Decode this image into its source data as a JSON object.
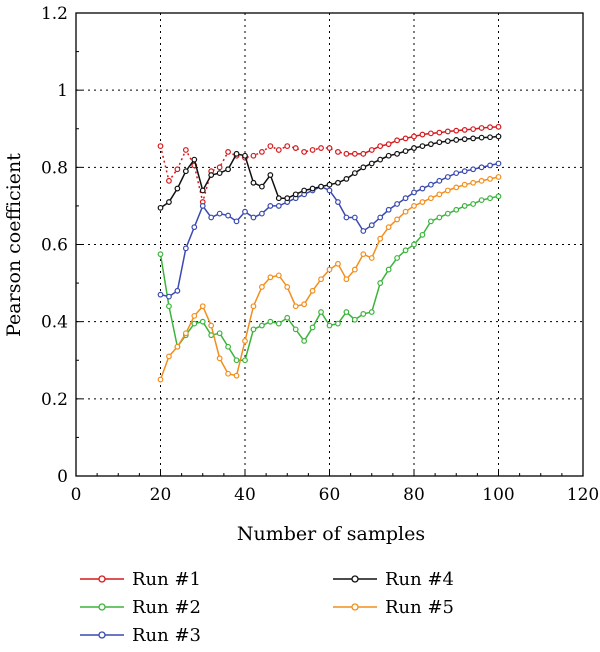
{
  "chart_data": {
    "type": "line",
    "xlabel": "Number of samples",
    "ylabel": "Pearson coefficient",
    "xlim": [
      0,
      120
    ],
    "ylim": [
      0,
      1.2
    ],
    "xticks": [
      0,
      20,
      40,
      60,
      80,
      100,
      120
    ],
    "yticks": [
      0,
      0.2,
      0.4,
      0.6,
      0.8,
      1,
      1.2
    ],
    "ytick_labels": [
      "0",
      "0.2",
      "0.4",
      "0.6",
      "0.8",
      "1",
      "1.2"
    ],
    "grid": "dotted",
    "legend_placement": "below",
    "x": [
      20,
      22,
      24,
      26,
      28,
      30,
      32,
      34,
      36,
      38,
      40,
      42,
      44,
      46,
      48,
      50,
      52,
      54,
      56,
      58,
      60,
      62,
      64,
      66,
      68,
      70,
      72,
      74,
      76,
      78,
      80,
      82,
      84,
      86,
      88,
      90,
      92,
      94,
      96,
      98,
      100
    ],
    "series": [
      {
        "name": "Run #1",
        "color": "#d7191c",
        "style": "dotted-to-solid",
        "values": [
          0.855,
          0.765,
          0.795,
          0.845,
          0.805,
          0.71,
          0.79,
          0.8,
          0.84,
          0.83,
          0.825,
          0.83,
          0.84,
          0.855,
          0.845,
          0.855,
          0.85,
          0.84,
          0.845,
          0.85,
          0.85,
          0.84,
          0.835,
          0.835,
          0.835,
          0.845,
          0.855,
          0.86,
          0.87,
          0.875,
          0.88,
          0.885,
          0.888,
          0.89,
          0.893,
          0.895,
          0.897,
          0.899,
          0.902,
          0.904,
          0.905
        ]
      },
      {
        "name": "Run #2",
        "color": "#3cb43c",
        "style": "solid",
        "values": [
          0.575,
          0.44,
          0.335,
          0.365,
          0.395,
          0.4,
          0.365,
          0.37,
          0.335,
          0.3,
          0.3,
          0.38,
          0.39,
          0.4,
          0.395,
          0.41,
          0.38,
          0.35,
          0.385,
          0.425,
          0.39,
          0.395,
          0.425,
          0.405,
          0.42,
          0.425,
          0.5,
          0.535,
          0.565,
          0.585,
          0.6,
          0.625,
          0.66,
          0.67,
          0.68,
          0.69,
          0.7,
          0.705,
          0.715,
          0.72,
          0.725
        ]
      },
      {
        "name": "Run #3",
        "color": "#3a4ab0",
        "style": "solid",
        "values": [
          0.47,
          0.465,
          0.48,
          0.59,
          0.645,
          0.7,
          0.67,
          0.68,
          0.675,
          0.66,
          0.685,
          0.67,
          0.68,
          0.7,
          0.7,
          0.71,
          0.72,
          0.73,
          0.74,
          0.75,
          0.74,
          0.71,
          0.67,
          0.67,
          0.635,
          0.65,
          0.67,
          0.69,
          0.705,
          0.72,
          0.735,
          0.745,
          0.755,
          0.765,
          0.775,
          0.785,
          0.79,
          0.795,
          0.8,
          0.805,
          0.81
        ]
      },
      {
        "name": "Run #4",
        "color": "#111111",
        "style": "solid",
        "values": [
          0.695,
          0.71,
          0.745,
          0.79,
          0.82,
          0.74,
          0.78,
          0.785,
          0.795,
          0.835,
          0.83,
          0.76,
          0.75,
          0.78,
          0.72,
          0.72,
          0.73,
          0.74,
          0.745,
          0.75,
          0.755,
          0.76,
          0.77,
          0.785,
          0.8,
          0.81,
          0.82,
          0.83,
          0.835,
          0.842,
          0.85,
          0.855,
          0.86,
          0.865,
          0.868,
          0.871,
          0.873,
          0.875,
          0.877,
          0.878,
          0.88
        ]
      },
      {
        "name": "Run #5",
        "color": "#f28e1c",
        "style": "solid",
        "values": [
          0.25,
          0.31,
          0.335,
          0.37,
          0.415,
          0.44,
          0.39,
          0.305,
          0.265,
          0.26,
          0.35,
          0.44,
          0.49,
          0.515,
          0.52,
          0.49,
          0.44,
          0.445,
          0.48,
          0.51,
          0.535,
          0.55,
          0.51,
          0.535,
          0.575,
          0.565,
          0.615,
          0.645,
          0.665,
          0.685,
          0.7,
          0.71,
          0.72,
          0.73,
          0.74,
          0.748,
          0.755,
          0.76,
          0.765,
          0.77,
          0.775
        ]
      }
    ]
  }
}
